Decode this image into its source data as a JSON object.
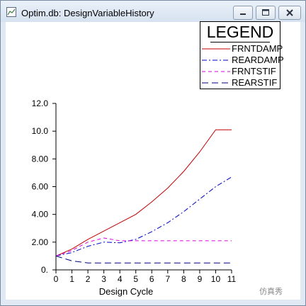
{
  "window": {
    "title": "Optim.db:  DesignVariableHistory"
  },
  "legend": {
    "title": "LEGEND",
    "items": [
      {
        "label": "FRNTDAMP",
        "color": "#c00000",
        "dash": "solid"
      },
      {
        "label": "REARDAMP",
        "color": "#0000cc",
        "dash": "dash-dot"
      },
      {
        "label": "FRNTSTIF",
        "color": "#dd00dd",
        "dash": "dashed"
      },
      {
        "label": "REARSTIF",
        "color": "#000080",
        "dash": "long-dash"
      }
    ]
  },
  "watermark": "仿真秀",
  "chart_data": {
    "type": "line",
    "xlabel": "Design Cycle",
    "ylabel": "",
    "xlim": [
      0,
      11
    ],
    "ylim": [
      0,
      12
    ],
    "x": [
      0,
      1,
      2,
      3,
      4,
      5,
      6,
      7,
      8,
      9,
      10,
      11
    ],
    "x_ticks": [
      "0",
      "1",
      "2",
      "3",
      "4",
      "5",
      "6",
      "7",
      "8",
      "9",
      "10",
      "11"
    ],
    "y_ticks": [
      "0.",
      "2.00",
      "4.00",
      "6.00",
      "8.00",
      "10.0",
      "12.0"
    ],
    "series": [
      {
        "name": "FRNTDAMP",
        "values": [
          1.0,
          1.5,
          2.2,
          2.8,
          3.4,
          4.0,
          4.9,
          5.9,
          7.1,
          8.5,
          10.1,
          10.1
        ]
      },
      {
        "name": "REARDAMP",
        "values": [
          1.0,
          1.25,
          1.7,
          2.0,
          1.95,
          2.2,
          2.75,
          3.4,
          4.2,
          5.1,
          6.0,
          6.7
        ]
      },
      {
        "name": "FRNTSTIF",
        "values": [
          1.0,
          1.4,
          2.0,
          2.3,
          2.1,
          2.1,
          2.1,
          2.1,
          2.1,
          2.1,
          2.1,
          2.1
        ]
      },
      {
        "name": "REARSTIF",
        "values": [
          1.0,
          0.65,
          0.5,
          0.5,
          0.5,
          0.5,
          0.5,
          0.5,
          0.5,
          0.5,
          0.5,
          0.5
        ]
      }
    ]
  }
}
